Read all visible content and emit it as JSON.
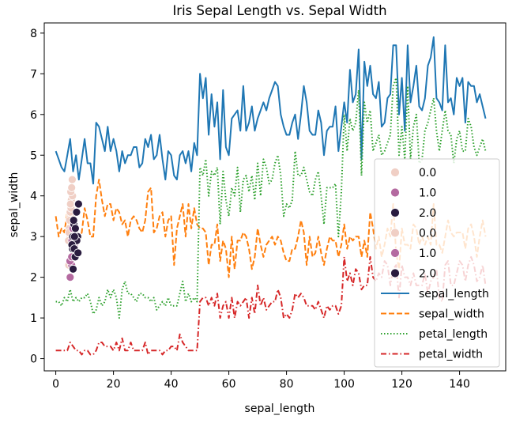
{
  "chart_data": {
    "type": "line",
    "title": "Iris Sepal Length vs. Sepal Width",
    "xlabel": "sepal_length",
    "ylabel": "sepal_width",
    "xlim": [
      -4,
      156
    ],
    "ylim": [
      -0.3,
      8.25
    ],
    "xticks": [
      0,
      20,
      40,
      60,
      80,
      100,
      120,
      140
    ],
    "yticks": [
      0,
      1,
      2,
      3,
      4,
      5,
      6,
      7,
      8
    ],
    "grid": false,
    "legend": {
      "position": "right",
      "title": ""
    },
    "series": [
      {
        "name": "sepal_length",
        "style": "solid",
        "color": "#1f77b4",
        "values": [
          5.1,
          4.9,
          4.7,
          4.6,
          5.0,
          5.4,
          4.6,
          5.0,
          4.4,
          4.9,
          5.4,
          4.8,
          4.8,
          4.3,
          5.8,
          5.7,
          5.4,
          5.1,
          5.7,
          5.1,
          5.4,
          5.1,
          4.6,
          5.1,
          4.8,
          5.0,
          5.0,
          5.2,
          5.2,
          4.7,
          4.8,
          5.4,
          5.2,
          5.5,
          4.9,
          5.0,
          5.5,
          4.9,
          4.4,
          5.1,
          5.0,
          4.5,
          4.4,
          5.0,
          5.1,
          4.8,
          5.1,
          4.6,
          5.3,
          5.0,
          7.0,
          6.4,
          6.9,
          5.5,
          6.5,
          5.7,
          6.3,
          4.9,
          6.6,
          5.2,
          5.0,
          5.9,
          6.0,
          6.1,
          5.6,
          6.7,
          5.6,
          5.8,
          6.2,
          5.6,
          5.9,
          6.1,
          6.3,
          6.1,
          6.4,
          6.6,
          6.8,
          6.7,
          6.0,
          5.7,
          5.5,
          5.5,
          5.8,
          6.0,
          5.4,
          6.0,
          6.7,
          6.3,
          5.6,
          5.5,
          5.5,
          6.1,
          5.8,
          5.0,
          5.6,
          5.7,
          5.7,
          6.2,
          5.1,
          5.7,
          6.3,
          5.8,
          7.1,
          6.3,
          6.5,
          7.6,
          4.9,
          7.3,
          6.7,
          7.2,
          6.5,
          6.4,
          6.8,
          5.7,
          5.8,
          6.4,
          6.5,
          7.7,
          7.7,
          6.0,
          6.9,
          5.6,
          7.7,
          6.3,
          6.7,
          7.2,
          6.2,
          6.1,
          6.4,
          7.2,
          7.4,
          7.9,
          6.4,
          6.3,
          6.1,
          7.7,
          6.3,
          6.4,
          6.0,
          6.9,
          6.7,
          6.9,
          5.8,
          6.8,
          6.7,
          6.7,
          6.3,
          6.5,
          6.2,
          5.9
        ]
      },
      {
        "name": "sepal_width",
        "style": "dashed",
        "color": "#ff7f0e",
        "values": [
          3.5,
          3.0,
          3.2,
          3.1,
          3.6,
          3.9,
          3.4,
          3.4,
          2.9,
          3.1,
          3.7,
          3.4,
          3.0,
          3.0,
          4.0,
          4.4,
          3.9,
          3.5,
          3.8,
          3.8,
          3.4,
          3.7,
          3.6,
          3.3,
          3.4,
          3.0,
          3.4,
          3.5,
          3.4,
          3.2,
          3.1,
          3.4,
          4.1,
          4.2,
          3.1,
          3.2,
          3.5,
          3.6,
          3.0,
          3.4,
          3.5,
          2.3,
          3.2,
          3.5,
          3.8,
          3.0,
          3.8,
          3.2,
          3.7,
          3.3,
          3.2,
          3.2,
          3.1,
          2.3,
          2.8,
          2.8,
          3.3,
          2.4,
          2.9,
          2.7,
          2.0,
          3.0,
          2.2,
          2.9,
          2.9,
          3.1,
          3.0,
          2.7,
          2.2,
          2.5,
          3.2,
          2.8,
          2.5,
          2.8,
          2.9,
          3.0,
          2.8,
          3.0,
          2.9,
          2.6,
          2.4,
          2.4,
          2.7,
          2.7,
          3.0,
          3.4,
          3.1,
          2.3,
          3.0,
          2.5,
          2.6,
          3.0,
          2.6,
          2.3,
          2.7,
          3.0,
          2.9,
          2.9,
          2.5,
          2.8,
          3.3,
          2.7,
          3.0,
          2.9,
          3.0,
          3.0,
          2.5,
          2.9,
          2.5,
          3.6,
          3.2,
          2.7,
          3.0,
          2.5,
          2.8,
          3.2,
          3.0,
          3.8,
          2.6,
          2.2,
          3.2,
          2.8,
          2.8,
          2.7,
          3.3,
          3.2,
          2.8,
          3.0,
          2.8,
          3.0,
          2.8,
          3.8,
          2.8,
          2.8,
          2.6,
          3.0,
          3.4,
          3.1,
          3.0,
          3.1,
          3.1,
          3.1,
          2.7,
          3.2,
          3.3,
          3.0,
          2.5,
          3.0,
          3.4,
          3.0
        ]
      },
      {
        "name": "petal_length",
        "style": "dotted",
        "color": "#2ca02c",
        "values": [
          1.4,
          1.4,
          1.3,
          1.5,
          1.4,
          1.7,
          1.4,
          1.5,
          1.4,
          1.5,
          1.5,
          1.6,
          1.4,
          1.1,
          1.2,
          1.5,
          1.3,
          1.4,
          1.7,
          1.5,
          1.7,
          1.5,
          1.0,
          1.7,
          1.9,
          1.6,
          1.6,
          1.5,
          1.4,
          1.6,
          1.6,
          1.5,
          1.5,
          1.4,
          1.5,
          1.2,
          1.3,
          1.4,
          1.3,
          1.5,
          1.3,
          1.3,
          1.3,
          1.6,
          1.9,
          1.4,
          1.6,
          1.4,
          1.5,
          1.4,
          4.7,
          4.5,
          4.9,
          4.0,
          4.6,
          4.5,
          4.7,
          3.3,
          4.6,
          3.9,
          3.5,
          4.2,
          4.0,
          4.7,
          3.6,
          4.4,
          4.5,
          4.1,
          4.5,
          3.9,
          4.8,
          4.0,
          4.9,
          4.7,
          4.3,
          4.4,
          4.8,
          5.0,
          4.5,
          3.5,
          3.8,
          3.7,
          3.9,
          5.1,
          4.5,
          4.5,
          4.7,
          4.4,
          4.1,
          4.0,
          4.4,
          4.6,
          4.0,
          3.3,
          4.2,
          4.2,
          4.2,
          4.3,
          3.0,
          4.1,
          6.0,
          5.1,
          5.9,
          5.6,
          5.8,
          6.6,
          4.5,
          6.3,
          5.8,
          6.1,
          5.1,
          5.3,
          5.5,
          5.0,
          5.1,
          5.3,
          5.5,
          6.7,
          6.9,
          5.0,
          5.7,
          4.9,
          6.7,
          4.9,
          5.7,
          6.0,
          4.8,
          4.9,
          5.6,
          5.8,
          6.1,
          6.4,
          5.6,
          5.1,
          5.6,
          6.1,
          5.6,
          5.5,
          4.8,
          5.4,
          5.6,
          5.1,
          5.1,
          5.9,
          5.7,
          5.2,
          5.0,
          5.2,
          5.4,
          5.1
        ]
      },
      {
        "name": "petal_width",
        "style": "dashdot",
        "color": "#d62728",
        "values": [
          0.2,
          0.2,
          0.2,
          0.2,
          0.2,
          0.4,
          0.3,
          0.2,
          0.2,
          0.1,
          0.2,
          0.2,
          0.1,
          0.1,
          0.2,
          0.4,
          0.4,
          0.3,
          0.3,
          0.3,
          0.2,
          0.4,
          0.2,
          0.5,
          0.2,
          0.2,
          0.4,
          0.2,
          0.2,
          0.2,
          0.2,
          0.4,
          0.1,
          0.2,
          0.2,
          0.2,
          0.2,
          0.1,
          0.2,
          0.2,
          0.3,
          0.3,
          0.2,
          0.6,
          0.4,
          0.3,
          0.2,
          0.2,
          0.2,
          0.2,
          1.4,
          1.5,
          1.5,
          1.3,
          1.5,
          1.3,
          1.6,
          1.0,
          1.3,
          1.4,
          1.0,
          1.5,
          1.0,
          1.4,
          1.3,
          1.4,
          1.5,
          1.0,
          1.5,
          1.1,
          1.8,
          1.3,
          1.5,
          1.2,
          1.3,
          1.4,
          1.4,
          1.7,
          1.5,
          1.0,
          1.1,
          1.0,
          1.2,
          1.6,
          1.5,
          1.6,
          1.5,
          1.3,
          1.3,
          1.3,
          1.2,
          1.4,
          1.2,
          1.0,
          1.3,
          1.2,
          1.3,
          1.3,
          1.1,
          1.3,
          2.5,
          1.9,
          2.1,
          1.8,
          2.2,
          2.1,
          1.7,
          1.8,
          1.8,
          2.5,
          2.0,
          1.9,
          2.1,
          2.0,
          2.4,
          2.3,
          1.8,
          2.2,
          2.3,
          1.5,
          2.3,
          2.0,
          2.0,
          1.8,
          2.1,
          1.8,
          1.8,
          1.8,
          2.1,
          1.6,
          1.9,
          2.0,
          2.2,
          1.5,
          1.4,
          2.3,
          2.4,
          1.8,
          1.8,
          2.1,
          2.4,
          2.3,
          1.9,
          2.3,
          2.5,
          2.3,
          1.9,
          2.0,
          2.3,
          1.8
        ]
      }
    ],
    "scatter": {
      "hue_levels": [
        {
          "name": "0.0",
          "color": "#f0cfc5"
        },
        {
          "name": "1.0",
          "color": "#b46aa0"
        },
        {
          "name": "2.0",
          "color": "#2a1c3f"
        }
      ],
      "points": [
        {
          "x": 5.1,
          "y": 3.5,
          "hue": 0
        },
        {
          "x": 4.9,
          "y": 3.0,
          "hue": 0
        },
        {
          "x": 4.7,
          "y": 3.2,
          "hue": 0
        },
        {
          "x": 4.6,
          "y": 3.1,
          "hue": 0
        },
        {
          "x": 5.0,
          "y": 3.6,
          "hue": 0
        },
        {
          "x": 5.4,
          "y": 3.9,
          "hue": 0
        },
        {
          "x": 4.4,
          "y": 2.9,
          "hue": 0
        },
        {
          "x": 5.8,
          "y": 4.0,
          "hue": 0
        },
        {
          "x": 5.7,
          "y": 4.4,
          "hue": 0
        },
        {
          "x": 5.2,
          "y": 4.1,
          "hue": 0
        },
        {
          "x": 5.5,
          "y": 4.2,
          "hue": 0
        },
        {
          "x": 4.5,
          "y": 2.3,
          "hue": 0
        },
        {
          "x": 5.3,
          "y": 3.7,
          "hue": 0
        },
        {
          "x": 4.8,
          "y": 3.4,
          "hue": 0
        },
        {
          "x": 5.1,
          "y": 3.8,
          "hue": 0
        },
        {
          "x": 7.0,
          "y": 3.2,
          "hue": 1
        },
        {
          "x": 6.4,
          "y": 3.2,
          "hue": 1
        },
        {
          "x": 5.5,
          "y": 2.3,
          "hue": 1
        },
        {
          "x": 6.5,
          "y": 2.8,
          "hue": 1
        },
        {
          "x": 5.7,
          "y": 2.8,
          "hue": 1
        },
        {
          "x": 4.9,
          "y": 2.4,
          "hue": 1
        },
        {
          "x": 5.0,
          "y": 2.0,
          "hue": 1
        },
        {
          "x": 6.0,
          "y": 2.2,
          "hue": 1
        },
        {
          "x": 5.6,
          "y": 2.9,
          "hue": 1
        },
        {
          "x": 5.9,
          "y": 3.2,
          "hue": 1
        },
        {
          "x": 6.1,
          "y": 2.8,
          "hue": 1
        },
        {
          "x": 5.5,
          "y": 2.5,
          "hue": 1
        },
        {
          "x": 6.3,
          "y": 3.3,
          "hue": 2
        },
        {
          "x": 5.8,
          "y": 2.7,
          "hue": 2
        },
        {
          "x": 7.1,
          "y": 3.0,
          "hue": 2
        },
        {
          "x": 7.6,
          "y": 3.0,
          "hue": 2
        },
        {
          "x": 7.3,
          "y": 2.9,
          "hue": 2
        },
        {
          "x": 6.7,
          "y": 2.5,
          "hue": 2
        },
        {
          "x": 7.2,
          "y": 3.6,
          "hue": 2
        },
        {
          "x": 7.7,
          "y": 3.8,
          "hue": 2
        },
        {
          "x": 6.0,
          "y": 2.2,
          "hue": 2
        },
        {
          "x": 6.9,
          "y": 3.2,
          "hue": 2
        },
        {
          "x": 5.6,
          "y": 2.8,
          "hue": 2
        },
        {
          "x": 6.2,
          "y": 3.4,
          "hue": 2
        },
        {
          "x": 5.9,
          "y": 3.0,
          "hue": 2
        },
        {
          "x": 6.5,
          "y": 3.0,
          "hue": 2
        },
        {
          "x": 6.4,
          "y": 2.7,
          "hue": 2
        },
        {
          "x": 6.8,
          "y": 3.2,
          "hue": 2
        },
        {
          "x": 7.7,
          "y": 2.6,
          "hue": 2
        },
        {
          "x": 7.9,
          "y": 3.8,
          "hue": 2
        }
      ]
    },
    "legend_entries": [
      {
        "label": "0.0",
        "kind": "marker",
        "color": "#f0cfc5"
      },
      {
        "label": "1.0",
        "kind": "marker",
        "color": "#b46aa0"
      },
      {
        "label": "2.0",
        "kind": "marker",
        "color": "#2a1c3f"
      },
      {
        "label": "0.0",
        "kind": "marker",
        "color": "#f0cfc5"
      },
      {
        "label": "1.0",
        "kind": "marker",
        "color": "#b46aa0"
      },
      {
        "label": "2.0",
        "kind": "marker",
        "color": "#2a1c3f"
      },
      {
        "label": "sepal_length",
        "kind": "line",
        "style": "solid",
        "color": "#1f77b4"
      },
      {
        "label": "sepal_width",
        "kind": "line",
        "style": "dashed",
        "color": "#ff7f0e"
      },
      {
        "label": "petal_length",
        "kind": "line",
        "style": "dotted",
        "color": "#2ca02c"
      },
      {
        "label": "petal_width",
        "kind": "line",
        "style": "dashdot",
        "color": "#d62728"
      }
    ]
  }
}
